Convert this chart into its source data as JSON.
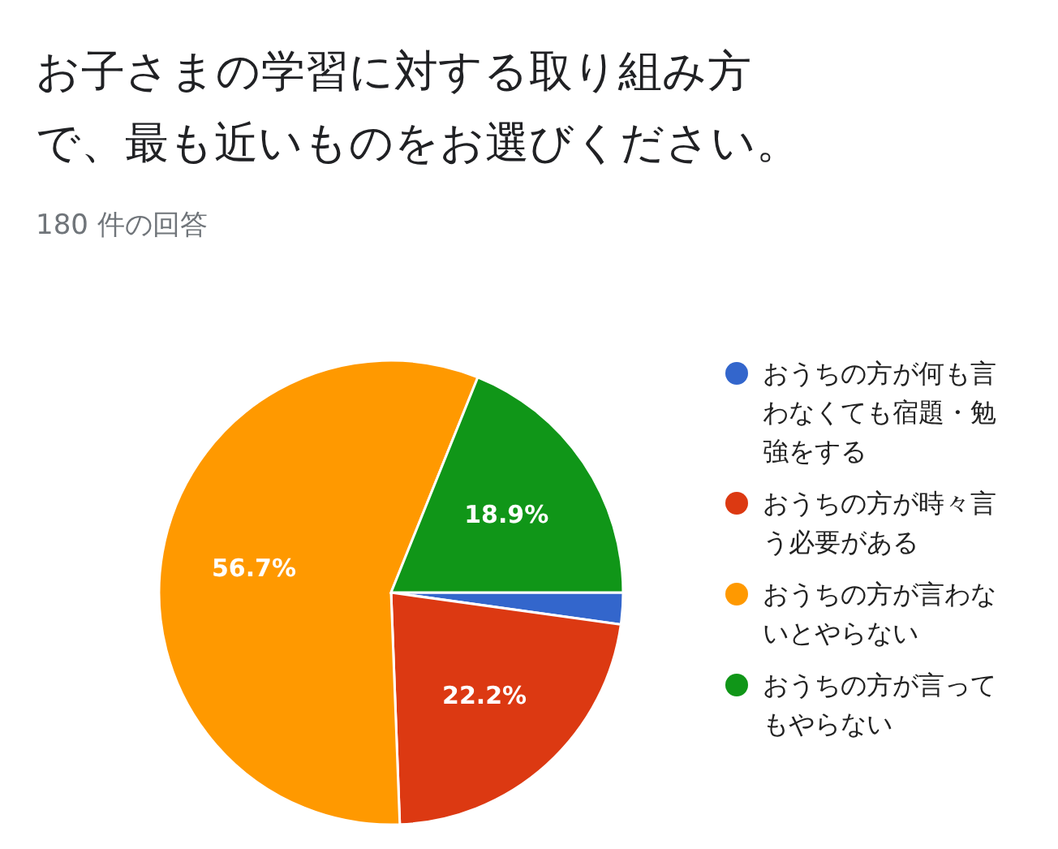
{
  "chart_data": {
    "type": "pie",
    "title": "お子さまの学習に対する取り組み方で、最も近いものをお選びください。",
    "subtitle": "180 件の回答",
    "categories": [
      "おうちの方が何も言わなくても宿題・勉強をする",
      "おうちの方が時々言う必要がある",
      "おうちの方が言わないとやらない",
      "おうちの方が言ってもやらない"
    ],
    "values": [
      2.2,
      22.2,
      56.7,
      18.9
    ],
    "colors": [
      "#3366cc",
      "#dc3912",
      "#ff9900",
      "#109618"
    ],
    "value_labels": [
      null,
      "22.2%",
      "56.7%",
      "18.9%"
    ],
    "legend": "right"
  }
}
